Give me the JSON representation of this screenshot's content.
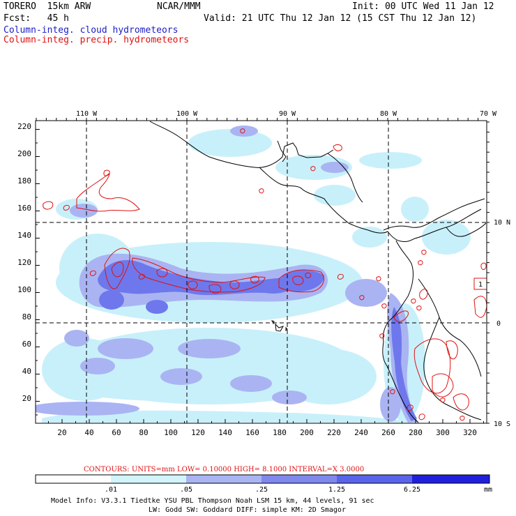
{
  "header": {
    "model": "TORERO  15km ARW",
    "org": "NCAR/MMM",
    "init": "Init: 00 UTC Wed 11 Jan 12",
    "fcst": "Fcst:   45 h",
    "valid": "Valid: 21 UTC Thu 12 Jan 12 (15 CST Thu 12 Jan 12)",
    "field1": "Column-integ. cloud hydrometeors",
    "field2": "Column-integ. precip. hydrometeors"
  },
  "map": {
    "lon_labels": [
      "110 W",
      "100 W",
      "90 W",
      "80 W",
      "70 W"
    ],
    "lat_labels": [
      "10 N",
      "0",
      "10 S"
    ],
    "y_ticks": [
      "220",
      "200",
      "180",
      "160",
      "140",
      "120",
      "100",
      "80",
      "60",
      "40",
      "20"
    ],
    "x_ticks": [
      "20",
      "40",
      "60",
      "80",
      "100",
      "120",
      "140",
      "160",
      "180",
      "200",
      "220",
      "240",
      "260",
      "280",
      "300",
      "320"
    ],
    "box_label": "1",
    "colors": {
      "light": "#c8f0fa",
      "mid": "#aab4f2",
      "dark": "#6e78ec",
      "contour": "#e01010",
      "coast": "#000000"
    }
  },
  "contours_info": {
    "label": "CONTOURS:  UNITS=mm  LOW= 0.10000     HIGH=  8.1000     INTERVAL=X  3.0000"
  },
  "colorbar": {
    "ticks": [
      ".01",
      ".05",
      ".25",
      "1.25",
      "6.25"
    ],
    "units": "mm",
    "colors": [
      "#ffffff",
      "#d2f5fc",
      "#aab4f2",
      "#8088ee",
      "#5a64ea",
      "#2020dc"
    ]
  },
  "footer": {
    "line1": "Model Info: V3.3.1   Tiedtke YSU PBL  Thompson     Noah LSM  15 km,   44 levels,   91 sec",
    "line2": "LW: Godd SW: Goddard DIFF: simple KM: 2D Smagor"
  }
}
